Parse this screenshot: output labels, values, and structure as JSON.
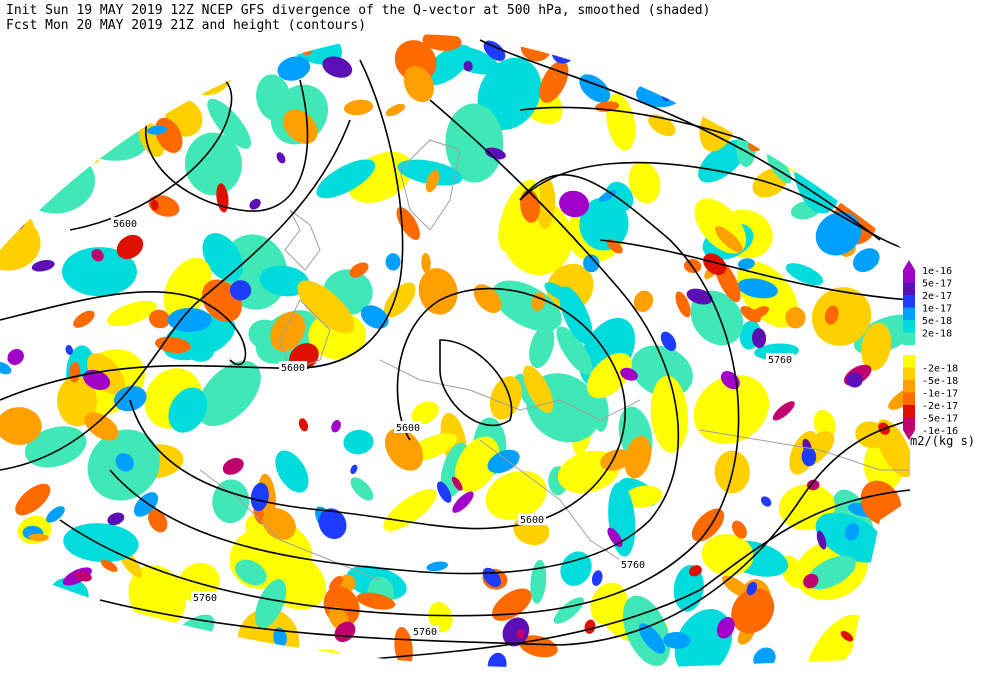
{
  "header": {
    "line1": "Init  Sun 19 MAY 2019 12Z  NCEP GFS divergence of the Q-vector at 500 hPa, smoothed (shaded)",
    "line2": "Fcst Mon 20 MAY 2019 21Z  and height (contours)"
  },
  "colorbar": {
    "labels": [
      "1e-16",
      "5e-17",
      "2e-17",
      "1e-17",
      "5e-18",
      "2e-18",
      "-2e-18",
      "-5e-18",
      "-1e-17",
      "-2e-17",
      "-5e-17",
      "-1e-16"
    ],
    "units": "m2/(kg s)"
  },
  "contour_labels": [
    "5600",
    "5600",
    "5600",
    "5600",
    "5760",
    "5760",
    "5760",
    "5760"
  ]
}
